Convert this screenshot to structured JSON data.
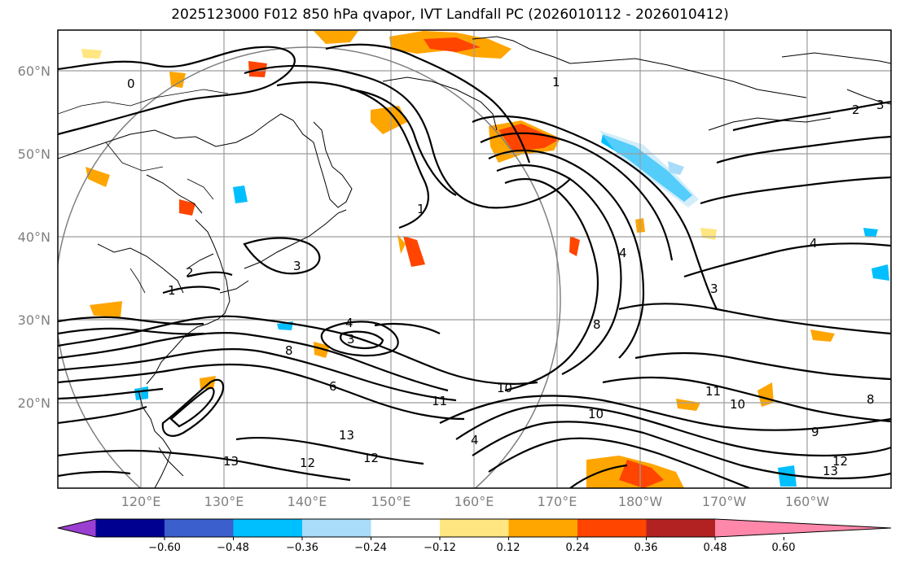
{
  "title": "2025123000 F012 850 hPa qvapor, IVT Landfall PC (2026010112 - 2026010412)",
  "map": {
    "latitude_labels": [
      "60°N",
      "50°N",
      "40°N",
      "30°N",
      "20°N"
    ],
    "longitude_labels": [
      "120°E",
      "130°E",
      "140°E",
      "150°E",
      "160°E",
      "170°E",
      "180°W",
      "170°W",
      "160°W"
    ],
    "contour_labels": [
      "0",
      "1",
      "1",
      "1",
      "2",
      "3",
      "4",
      "3",
      "8",
      "6",
      "10",
      "11",
      "10",
      "13",
      "12",
      "12",
      "13",
      "11",
      "10",
      "9",
      "13",
      "12",
      "8",
      "4",
      "3",
      "4",
      "2",
      "3",
      "8",
      "4"
    ]
  },
  "colorbar": {
    "ticks": [
      "−0.60",
      "−0.48",
      "−0.36",
      "−0.24",
      "−0.12",
      "0.12",
      "0.24",
      "0.36",
      "0.48",
      "0.60"
    ],
    "colors": [
      "#9a3fd0",
      "#000090",
      "#3a5fcd",
      "#00bfff",
      "#a8dcf8",
      "#ffffff",
      "#ffe680",
      "#ffa500",
      "#ff4500",
      "#b22222",
      "#ff88aa"
    ]
  }
}
